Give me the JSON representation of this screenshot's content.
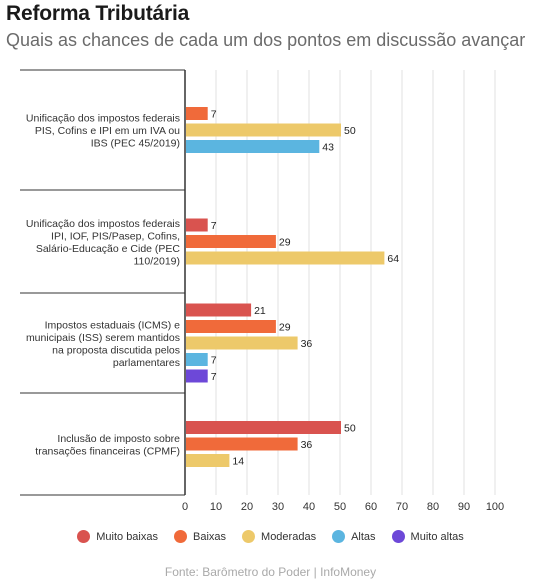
{
  "title": "Reforma Tributária",
  "subtitle": "Quais as chances de cada um dos pontos em discussão avançar",
  "source": "Fonte: Barômetro do Poder | InfoMoney",
  "colors": {
    "muito_baixas": "#d9534f",
    "baixas": "#f06a3a",
    "moderadas": "#edc96a",
    "altas": "#5bb5e0",
    "muito_altas": "#6d48d8"
  },
  "chart_data": {
    "type": "bar",
    "orientation": "horizontal",
    "title": "Reforma Tributária",
    "subtitle": "Quais as chances de cada um dos pontos em discussão avançar",
    "xlim": [
      0,
      100
    ],
    "xticks": [
      0,
      10,
      20,
      30,
      40,
      50,
      60,
      70,
      80,
      90,
      100
    ],
    "grid": true,
    "legend_position": "bottom",
    "legend": [
      {
        "name": "Muito baixas",
        "color": "#d9534f"
      },
      {
        "name": "Baixas",
        "color": "#f06a3a"
      },
      {
        "name": "Moderadas",
        "color": "#edc96a"
      },
      {
        "name": "Altas",
        "color": "#5bb5e0"
      },
      {
        "name": "Muito altas",
        "color": "#6d48d8"
      }
    ],
    "groups": [
      {
        "label_lines": [
          "Unificação dos impostos federais",
          "PIS, Cofins e IPI em um IVA ou",
          "IBS (PEC 45/2019)"
        ],
        "bars": [
          {
            "series": "Baixas",
            "value": 7
          },
          {
            "series": "Moderadas",
            "value": 50
          },
          {
            "series": "Altas",
            "value": 43
          }
        ]
      },
      {
        "label_lines": [
          "Unificação dos impostos federais",
          "IPI, IOF, PIS/Pasep, Cofins,",
          "Salário-Educação e Cide (PEC",
          "110/2019)"
        ],
        "bars": [
          {
            "series": "Muito baixas",
            "value": 7
          },
          {
            "series": "Baixas",
            "value": 29
          },
          {
            "series": "Moderadas",
            "value": 64
          }
        ]
      },
      {
        "label_lines": [
          "Impostos estaduais (ICMS) e",
          "municipais (ISS) serem mantidos",
          "na proposta discutida pelos",
          "parlamentares"
        ],
        "bars": [
          {
            "series": "Muito baixas",
            "value": 21
          },
          {
            "series": "Baixas",
            "value": 29
          },
          {
            "series": "Moderadas",
            "value": 36
          },
          {
            "series": "Altas",
            "value": 7
          },
          {
            "series": "Muito altas",
            "value": 7
          }
        ]
      },
      {
        "label_lines": [
          "Inclusão de imposto sobre",
          "transações financeiras (CPMF)"
        ],
        "bars": [
          {
            "series": "Muito baixas",
            "value": 50
          },
          {
            "series": "Baixas",
            "value": 36
          },
          {
            "series": "Moderadas",
            "value": 14
          }
        ]
      }
    ]
  }
}
